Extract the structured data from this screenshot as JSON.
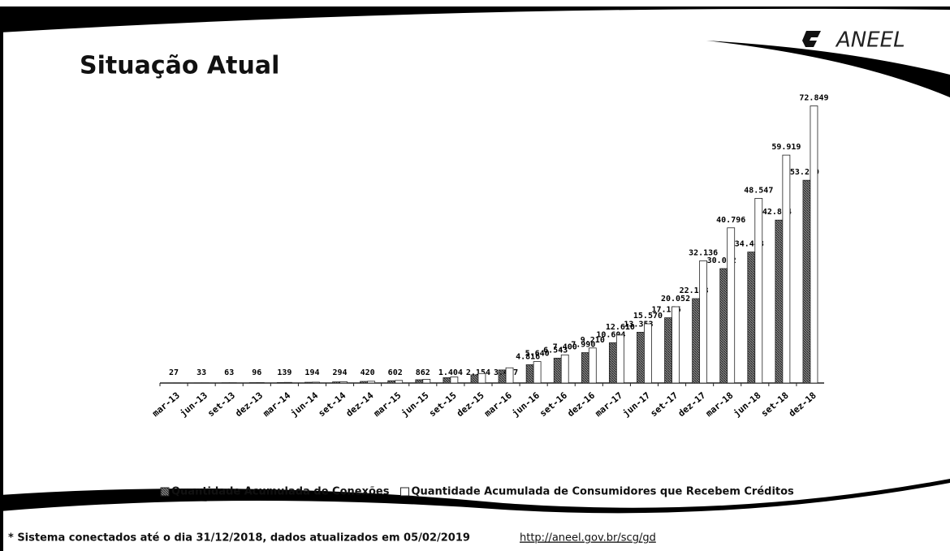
{
  "chart_data": {
    "type": "bar",
    "title": "Situação Atual",
    "logo_text": "ANEEL",
    "categories": [
      "mar-13",
      "jun-13",
      "set-13",
      "dez-13",
      "mar-14",
      "jun-14",
      "set-14",
      "dez-14",
      "mar-15",
      "jun-15",
      "set-15",
      "dez-15",
      "mar-16",
      "jun-16",
      "set-16",
      "dez-16",
      "mar-17",
      "jun-17",
      "set-17",
      "dez-17",
      "mar-18",
      "jun-18",
      "set-18",
      "dez-18"
    ],
    "series": [
      {
        "name": "Quantidade Acumulada de Conexões",
        "color": "#555555",
        "pattern": "hatch",
        "values": [
          27,
          33,
          63,
          96,
          139,
          194,
          294,
          420,
          602,
          862,
          1404,
          2154,
          3437,
          4816,
          6543,
          7990,
          10604,
          13353,
          17156,
          22183,
          30082,
          34443,
          42834,
          53299
        ],
        "value_labels": [
          "27",
          "33",
          "63",
          "96",
          "139",
          "194",
          "294",
          "420",
          "602",
          "862",
          "1.404",
          "2.154",
          "3.437",
          "4.816",
          "6.543",
          "7.990",
          "10.604",
          "13.353",
          "17.156",
          "22.183",
          "30.082",
          "34.443",
          "42.834",
          "53.299"
        ]
      },
      {
        "name": "Quantidade Acumulada de Consumidores que Recebem Créditos",
        "color": "#ffffff",
        "values": [
          30,
          40,
          70,
          110,
          160,
          220,
          330,
          470,
          680,
          980,
          1600,
          2500,
          4000,
          5640,
          7400,
          9210,
          12610,
          15570,
          20052,
          32136,
          40796,
          48547,
          59919,
          72849
        ],
        "value_labels": [
          null,
          null,
          null,
          null,
          null,
          null,
          null,
          null,
          null,
          null,
          null,
          null,
          null,
          "5.640",
          "7.400",
          "9.210",
          "12.610",
          "15.570",
          "20.052",
          "32.136",
          "40.796",
          "48.547",
          "59.919",
          "72.849"
        ]
      }
    ],
    "ylim": [
      0,
      80000
    ],
    "legend": "bottom",
    "footnote": "* Sistema conectados até o dia 31/12/2018, dados atualizados em 05/02/2019",
    "source_url": "http://aneel.gov.br/scg/gd"
  }
}
